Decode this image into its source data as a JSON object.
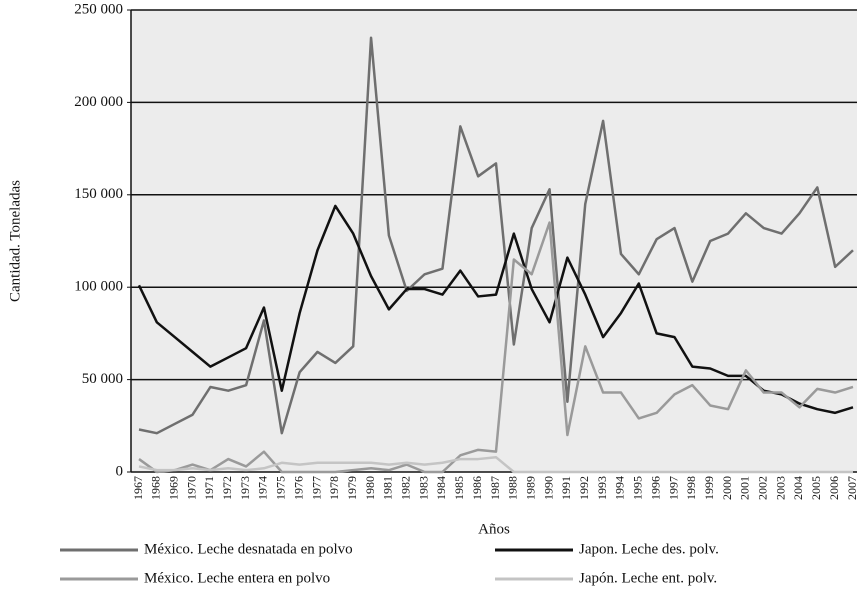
{
  "chart_data": {
    "type": "line",
    "x_label": "Años",
    "y_label": "Cantidad. Toneladas",
    "categories": [
      "1967",
      "1968",
      "1969",
      "1970",
      "1971",
      "1972",
      "1973",
      "1974",
      "1975",
      "1976",
      "1977",
      "1978",
      "1979",
      "1980",
      "1981",
      "1982",
      "1983",
      "1984",
      "1985",
      "1986",
      "1987",
      "1988",
      "1989",
      "1990",
      "1991",
      "1992",
      "1993",
      "1994",
      "1995",
      "1996",
      "1997",
      "1998",
      "1999",
      "2000",
      "2001",
      "2002",
      "2003",
      "2004",
      "2005",
      "2006",
      "2007"
    ],
    "series": [
      {
        "name": "México. Leche desnatada en polvo",
        "color": "#6f6f6f",
        "values": [
          23000,
          21000,
          26000,
          31000,
          46000,
          44000,
          47000,
          82000,
          21000,
          54000,
          65000,
          59000,
          68000,
          235000,
          128000,
          98000,
          107000,
          110000,
          187000,
          160000,
          167000,
          69000,
          132000,
          153000,
          38000,
          145000,
          190000,
          118000,
          107000,
          126000,
          132000,
          103000,
          125000,
          129000,
          140000,
          132000,
          129000,
          140000,
          154000,
          111000,
          120000
        ]
      },
      {
        "name": "Japon. Leche des. polv.",
        "color": "#111111",
        "values": [
          101000,
          81000,
          73000,
          65000,
          57000,
          62000,
          67000,
          89000,
          44000,
          86000,
          120000,
          144000,
          129000,
          106000,
          88000,
          99000,
          99000,
          96000,
          109000,
          95000,
          96000,
          129000,
          99000,
          81000,
          116000,
          96000,
          73000,
          86000,
          102000,
          75000,
          73000,
          57000,
          56000,
          52000,
          52000,
          44000,
          42000,
          37000,
          34000,
          32000,
          35000
        ]
      },
      {
        "name": "México. Leche entera en polvo",
        "color": "#9a9a9a",
        "values": [
          7000,
          0,
          1000,
          4000,
          1000,
          7000,
          3000,
          11000,
          0,
          0,
          0,
          0,
          1000,
          2000,
          1000,
          4000,
          0,
          0,
          9000,
          12000,
          11000,
          115000,
          107000,
          135000,
          20000,
          68000,
          43000,
          43000,
          29000,
          32000,
          42000,
          47000,
          36000,
          34000,
          55000,
          43000,
          43000,
          35000,
          45000,
          43000,
          46000
        ]
      },
      {
        "name": "Japón. Leche ent. polv.",
        "color": "#c4c4c4",
        "values": [
          3000,
          1000,
          1000,
          2000,
          1000,
          2000,
          1000,
          2000,
          5000,
          4000,
          5000,
          5000,
          5000,
          5000,
          4000,
          5000,
          4000,
          5000,
          7000,
          7000,
          8000,
          0,
          0,
          0,
          0,
          0,
          0,
          0,
          0,
          0,
          0,
          0,
          0,
          0,
          0,
          0,
          0,
          0,
          0,
          0,
          0
        ]
      }
    ],
    "ylim": [
      0,
      250000
    ],
    "yticks": [
      {
        "value": 0,
        "label": "0"
      },
      {
        "value": 50000,
        "label": "50 000"
      },
      {
        "value": 100000,
        "label": "100 000"
      },
      {
        "value": 150000,
        "label": "150 000"
      },
      {
        "value": 200000,
        "label": "200 000"
      },
      {
        "value": 250000,
        "label": "250 000"
      }
    ],
    "grid": true,
    "legend": "bottom"
  }
}
